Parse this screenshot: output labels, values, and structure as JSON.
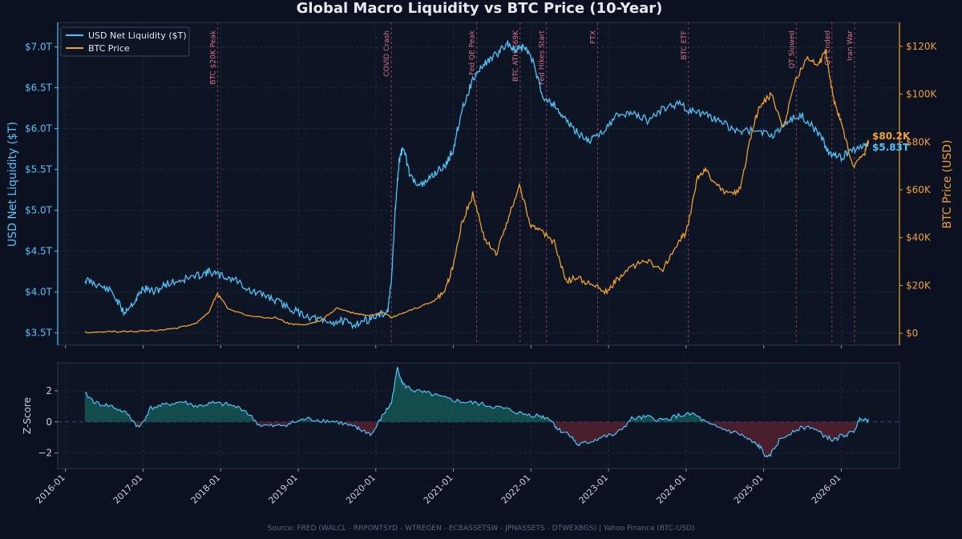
{
  "title": "Global Macro Liquidity vs BTC Price (10-Year)",
  "source": "Source: FRED (WALCL - RRPONTSYD - WTREGEN - ECBASSETSW - JPNASSETS - DTWEXBGS) | Yahoo Finance (BTC-USD)",
  "colors": {
    "background": "#0b1120",
    "liquidity": "#4fc3f7",
    "btc": "#f0a030",
    "event": "#c0506a",
    "zpos": "#155a58",
    "zneg": "#5a2030"
  },
  "chart_data": [
    {
      "type": "line",
      "title": "Global Macro Liquidity vs BTC Price (10-Year)",
      "ylabel": "USD Net Liquidity ($T)",
      "y2label": "BTC Price (USD)",
      "ylim": [
        3.35,
        7.3
      ],
      "y2lim": [
        -5000,
        130000
      ],
      "xlim": [
        2015.9,
        2026.75
      ],
      "yticks": [
        "$3.5T",
        "$4.0T",
        "$4.5T",
        "$5.0T",
        "$5.5T",
        "$6.0T",
        "$6.5T",
        "$7.0T"
      ],
      "ytick_values": [
        3.5,
        4.0,
        4.5,
        5.0,
        5.5,
        6.0,
        6.5,
        7.0
      ],
      "y2ticks": [
        "$0",
        "$20K",
        "$40K",
        "$60K",
        "$80K",
        "$100K",
        "$120K"
      ],
      "y2tick_values": [
        0,
        20000,
        40000,
        60000,
        80000,
        100000,
        120000
      ],
      "legend": {
        "placement": "top-left",
        "entries": [
          "USD Net Liquidity ($T)",
          "BTC Price"
        ]
      },
      "grid": true,
      "series": [
        {
          "name": "USD Net Liquidity ($T)",
          "axis": "left",
          "x": [
            2016.25,
            2016.4,
            2016.6,
            2016.75,
            2016.9,
            2017.0,
            2017.15,
            2017.3,
            2017.5,
            2017.7,
            2017.85,
            2018.0,
            2018.2,
            2018.4,
            2018.6,
            2018.8,
            2019.0,
            2019.2,
            2019.4,
            2019.55,
            2019.7,
            2019.85,
            2020.0,
            2020.15,
            2020.2,
            2020.25,
            2020.3,
            2020.35,
            2020.45,
            2020.6,
            2020.75,
            2020.9,
            2021.0,
            2021.1,
            2021.25,
            2021.4,
            2021.55,
            2021.7,
            2021.8,
            2021.9,
            2022.0,
            2022.15,
            2022.3,
            2022.45,
            2022.6,
            2022.75,
            2022.9,
            2023.1,
            2023.3,
            2023.5,
            2023.7,
            2023.9,
            2024.1,
            2024.3,
            2024.5,
            2024.7,
            2024.9,
            2025.1,
            2025.3,
            2025.5,
            2025.7,
            2025.85,
            2026.0,
            2026.15,
            2026.3,
            2026.35
          ],
          "values": [
            4.15,
            4.1,
            4.0,
            3.75,
            3.9,
            4.05,
            4.0,
            4.1,
            4.15,
            4.2,
            4.25,
            4.2,
            4.15,
            4.0,
            3.95,
            3.85,
            3.75,
            3.68,
            3.62,
            3.65,
            3.6,
            3.65,
            3.7,
            3.75,
            4.1,
            5.0,
            5.6,
            5.78,
            5.4,
            5.3,
            5.45,
            5.55,
            5.75,
            6.2,
            6.6,
            6.8,
            6.9,
            7.05,
            6.95,
            7.0,
            6.9,
            6.4,
            6.3,
            6.1,
            5.95,
            5.85,
            5.95,
            6.15,
            6.2,
            6.1,
            6.25,
            6.3,
            6.2,
            6.15,
            6.05,
            5.95,
            6.0,
            5.9,
            6.1,
            6.15,
            5.95,
            5.7,
            5.65,
            5.75,
            5.8,
            5.83
          ]
        },
        {
          "name": "BTC Price",
          "axis": "right",
          "x": [
            2016.25,
            2016.6,
            2016.9,
            2017.2,
            2017.5,
            2017.7,
            2017.85,
            2017.96,
            2018.1,
            2018.4,
            2018.7,
            2018.9,
            2019.1,
            2019.3,
            2019.5,
            2019.7,
            2019.9,
            2020.1,
            2020.2,
            2020.4,
            2020.6,
            2020.75,
            2020.9,
            2021.0,
            2021.1,
            2021.25,
            2021.4,
            2021.55,
            2021.7,
            2021.85,
            2022.0,
            2022.15,
            2022.3,
            2022.45,
            2022.6,
            2022.8,
            2022.95,
            2023.1,
            2023.3,
            2023.5,
            2023.7,
            2023.9,
            2024.0,
            2024.15,
            2024.25,
            2024.4,
            2024.55,
            2024.7,
            2024.85,
            2024.95,
            2025.1,
            2025.25,
            2025.4,
            2025.55,
            2025.7,
            2025.8,
            2025.9,
            2026.0,
            2026.15,
            2026.3,
            2026.35
          ],
          "values": [
            430,
            650,
            900,
            1200,
            2500,
            4500,
            9000,
            17000,
            10000,
            7000,
            6500,
            3800,
            3600,
            5500,
            10500,
            8500,
            7300,
            8500,
            6500,
            9000,
            11500,
            13500,
            18000,
            29000,
            45000,
            58000,
            40000,
            33000,
            47000,
            62000,
            45000,
            42000,
            38000,
            22000,
            23000,
            20000,
            17000,
            22000,
            28000,
            30000,
            27000,
            38000,
            42000,
            65000,
            68000,
            62000,
            58000,
            60000,
            85000,
            95000,
            100000,
            85000,
            105000,
            115000,
            112000,
            118000,
            98000,
            88000,
            70000,
            75000,
            80200
          ]
        }
      ],
      "annotations": [
        {
          "label": "BTC $20K Peak",
          "x": 2017.96
        },
        {
          "label": "COVID Crash",
          "x": 2020.2
        },
        {
          "label": "Fed QE Peak",
          "x": 2021.3
        },
        {
          "label": "BTC ATH $69K",
          "x": 2021.86
        },
        {
          "label": "Fed Hikes Start",
          "x": 2022.2
        },
        {
          "label": "FTX",
          "x": 2022.86
        },
        {
          "label": "BTC ETF",
          "x": 2024.03
        },
        {
          "label": "QT Slowed",
          "x": 2025.42
        },
        {
          "label": "QT Ended",
          "x": 2025.88
        },
        {
          "label": "Iran War",
          "x": 2026.17
        }
      ],
      "end_labels": {
        "btc": "$80.2K",
        "liquidity": "$5.83T"
      }
    },
    {
      "type": "area",
      "ylabel": "Z-Score",
      "ylim": [
        -3,
        3.8
      ],
      "yticks": [
        "2",
        "0",
        "−2"
      ],
      "ytick_values": [
        2,
        0,
        -2
      ],
      "xticks": [
        "2016-01",
        "2017-01",
        "2018-01",
        "2019-01",
        "2020-01",
        "2021-01",
        "2022-01",
        "2023-01",
        "2024-01",
        "2025-01",
        "2026-01"
      ],
      "xtick_values": [
        2016.0,
        2017.0,
        2018.0,
        2019.0,
        2020.0,
        2021.0,
        2022.0,
        2023.0,
        2024.0,
        2025.0,
        2026.0
      ],
      "x": [
        2016.25,
        2016.4,
        2016.6,
        2016.8,
        2016.95,
        2017.1,
        2017.3,
        2017.5,
        2017.7,
        2017.9,
        2018.1,
        2018.3,
        2018.5,
        2018.7,
        2018.9,
        2019.1,
        2019.3,
        2019.5,
        2019.7,
        2019.8,
        2019.95,
        2020.1,
        2020.2,
        2020.28,
        2020.35,
        2020.5,
        2020.7,
        2020.9,
        2021.1,
        2021.3,
        2021.5,
        2021.7,
        2021.9,
        2022.1,
        2022.25,
        2022.35,
        2022.5,
        2022.6,
        2022.75,
        2022.9,
        2023.1,
        2023.3,
        2023.5,
        2023.7,
        2023.9,
        2024.1,
        2024.3,
        2024.5,
        2024.7,
        2024.85,
        2024.95,
        2025.05,
        2025.2,
        2025.4,
        2025.6,
        2025.75,
        2025.9,
        2026.0,
        2026.15,
        2026.25,
        2026.35
      ],
      "values": [
        1.8,
        1.2,
        1.0,
        0.5,
        -0.4,
        0.9,
        1.1,
        1.3,
        1.0,
        1.2,
        1.1,
        0.8,
        -0.2,
        -0.3,
        -0.1,
        0.2,
        0.1,
        0.0,
        -0.3,
        -0.5,
        -0.8,
        0.5,
        1.2,
        3.5,
        2.4,
        2.0,
        1.8,
        1.5,
        1.3,
        1.2,
        1.0,
        0.8,
        0.5,
        0.4,
        0.2,
        -0.5,
        -0.8,
        -1.5,
        -1.3,
        -1.0,
        -0.8,
        0.2,
        0.3,
        0.1,
        0.4,
        0.5,
        -0.2,
        -0.5,
        -0.8,
        -1.3,
        -1.6,
        -2.4,
        -1.2,
        -0.5,
        -0.3,
        -0.8,
        -1.2,
        -0.9,
        -0.7,
        0.3,
        0.1
      ]
    }
  ]
}
